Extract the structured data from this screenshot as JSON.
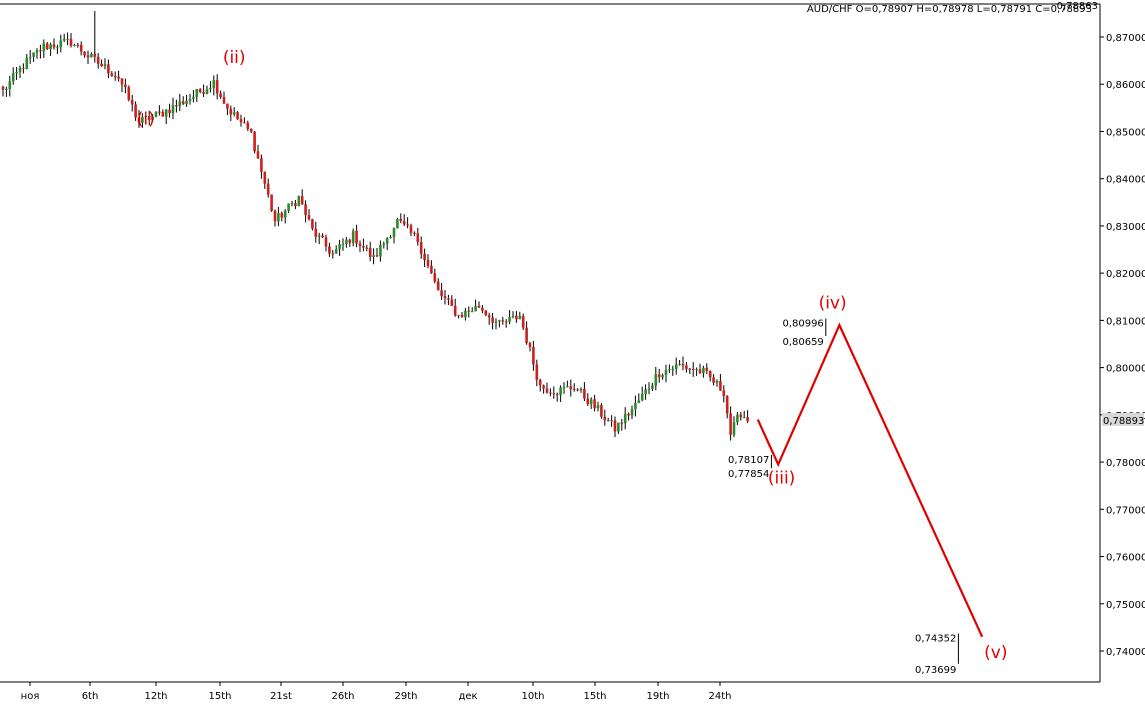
{
  "header": {
    "ohlc_text": "AUD/CHF O=0,78907 H=0,78978 L=0,78791 C=0,78893",
    "corner_text": "0,78863"
  },
  "chart_data": {
    "type": "candlestick",
    "title": "",
    "symbol": "AUD/CHF",
    "ohlc": {
      "open": 0.78907,
      "high": 0.78978,
      "low": 0.78791,
      "close": 0.78893
    },
    "last_price_label": "0,78893",
    "ylim": [
      0.7335,
      0.8755
    ],
    "y_ticks": [
      {
        "value": 0.87,
        "label": "0,87000"
      },
      {
        "value": 0.86,
        "label": "0,86000"
      },
      {
        "value": 0.85,
        "label": "0,85000"
      },
      {
        "value": 0.84,
        "label": "0,84000"
      },
      {
        "value": 0.83,
        "label": "0,83000"
      },
      {
        "value": 0.82,
        "label": "0,82000"
      },
      {
        "value": 0.81,
        "label": "0,81000"
      },
      {
        "value": 0.8,
        "label": "0,80000"
      },
      {
        "value": 0.79,
        "label": "0,79000"
      },
      {
        "value": 0.78,
        "label": "0,78000"
      },
      {
        "value": 0.77,
        "label": "0,77000"
      },
      {
        "value": 0.76,
        "label": "0,76000"
      },
      {
        "value": 0.75,
        "label": "0,75000"
      },
      {
        "value": 0.74,
        "label": "0,74000"
      }
    ],
    "x_labels": [
      "ноя",
      "6th",
      "12th",
      "15th",
      "21st",
      "26th",
      "29th",
      "дек",
      "10th",
      "15th",
      "19th",
      "24th"
    ],
    "anchors": [
      {
        "bar": 0,
        "price": 0.8585
      },
      {
        "bar": 6,
        "price": 0.864
      },
      {
        "bar": 12,
        "price": 0.868
      },
      {
        "bar": 20,
        "price": 0.869
      },
      {
        "bar": 25,
        "price": 0.866
      },
      {
        "bar": 34,
        "price": 0.8615
      },
      {
        "bar": 40,
        "price": 0.852
      },
      {
        "bar": 47,
        "price": 0.854
      },
      {
        "bar": 56,
        "price": 0.8575
      },
      {
        "bar": 62,
        "price": 0.8605
      },
      {
        "bar": 66,
        "price": 0.855
      },
      {
        "bar": 73,
        "price": 0.8495
      },
      {
        "bar": 80,
        "price": 0.831
      },
      {
        "bar": 87,
        "price": 0.836
      },
      {
        "bar": 91,
        "price": 0.829
      },
      {
        "bar": 97,
        "price": 0.824
      },
      {
        "bar": 103,
        "price": 0.828
      },
      {
        "bar": 109,
        "price": 0.823
      },
      {
        "bar": 116,
        "price": 0.831
      },
      {
        "bar": 122,
        "price": 0.827
      },
      {
        "bar": 128,
        "price": 0.816
      },
      {
        "bar": 134,
        "price": 0.811
      },
      {
        "bar": 140,
        "price": 0.813
      },
      {
        "bar": 146,
        "price": 0.809
      },
      {
        "bar": 152,
        "price": 0.811
      },
      {
        "bar": 158,
        "price": 0.796
      },
      {
        "bar": 163,
        "price": 0.795
      },
      {
        "bar": 168,
        "price": 0.796
      },
      {
        "bar": 175,
        "price": 0.791
      },
      {
        "bar": 180,
        "price": 0.787
      },
      {
        "bar": 186,
        "price": 0.792
      },
      {
        "bar": 193,
        "price": 0.799
      },
      {
        "bar": 199,
        "price": 0.8005
      },
      {
        "bar": 206,
        "price": 0.799
      },
      {
        "bar": 212,
        "price": 0.795
      },
      {
        "bar": 214,
        "price": 0.786
      },
      {
        "bar": 217,
        "price": 0.7905
      },
      {
        "bar": 219,
        "price": 0.7889
      }
    ],
    "forecast_path": [
      {
        "bar": 222,
        "price": 0.789
      },
      {
        "bar": 228,
        "price": 0.7795
      },
      {
        "bar": 246,
        "price": 0.809
      },
      {
        "bar": 288,
        "price": 0.743
      }
    ],
    "wave_labels": [
      {
        "text": "(i)",
        "bar": 42,
        "price": 0.8515
      },
      {
        "text": "(ii)",
        "bar": 68,
        "price": 0.8645
      },
      {
        "text": "(iii)",
        "bar": 229,
        "price": 0.7755
      },
      {
        "text": "(iv)",
        "bar": 244,
        "price": 0.8125
      },
      {
        "text": "(v)",
        "bar": 292,
        "price": 0.7385
      }
    ],
    "target_annotations": [
      {
        "upper": "0,78107",
        "lower": "0,77854",
        "bar": 226,
        "price_top": 0.7815,
        "price_bottom": 0.7787
      },
      {
        "upper": "0,80996",
        "lower": "0,80659",
        "bar": 242,
        "price_top": 0.8104,
        "price_bottom": 0.8067
      },
      {
        "upper": "0,74352",
        "lower": "0,73699",
        "bar": 281,
        "price_top": 0.7437,
        "price_bottom": 0.7373
      }
    ],
    "colors": {
      "bull": "#2c8a2c",
      "bear": "#cc1f1f",
      "wick": "#000000",
      "forecast": "#e00000",
      "labels": "#e00000",
      "last_price_box": "#d8d8d8"
    }
  }
}
